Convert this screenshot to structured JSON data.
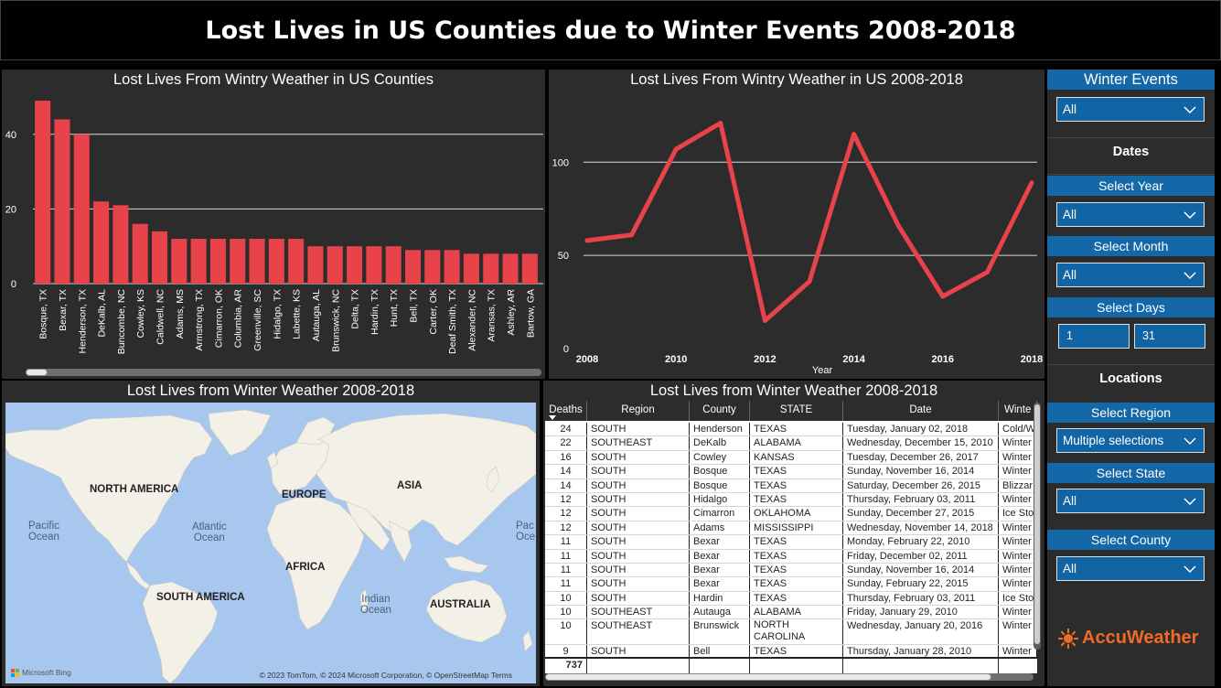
{
  "header": {
    "title": "Lost Lives in US Counties due to Winter Events 2008-2018"
  },
  "bar_chart": {
    "title": "Lost Lives From Wintry Weather in US Counties"
  },
  "line_chart": {
    "title": "Lost Lives  From Wintry Weather in US 2008-2018"
  },
  "map": {
    "title": "Lost Lives from Winter Weather 2008-2018",
    "labels": {
      "north_america": "NORTH AMERICA",
      "europe": "EUROPE",
      "asia": "ASIA",
      "africa": "AFRICA",
      "south_america": "SOUTH AMERICA",
      "australia": "AUSTRALIA",
      "pacific": "Pacific\nOcean",
      "atlantic": "Atlantic\nOcean",
      "indian": "Indian\nOcean",
      "pacific_right": "Pac\nOce"
    },
    "attribution": "© 2023 TomTom, © 2024 Microsoft Corporation, © OpenStreetMap  Terms",
    "bing": "Microsoft Bing"
  },
  "table": {
    "title": "Lost Lives from Winter Weather 2008-2018",
    "columns": [
      "Deaths",
      "Region",
      "County",
      "STATE",
      "Date",
      "Winte"
    ],
    "rows": [
      [
        "24",
        "SOUTH",
        "Henderson",
        "TEXAS",
        "Tuesday, January 02, 2018",
        "Cold/W"
      ],
      [
        "22",
        "SOUTHEAST",
        "DeKalb",
        "ALABAMA",
        "Wednesday, December 15, 2010",
        "Winter"
      ],
      [
        "16",
        "SOUTH",
        "Cowley",
        "KANSAS",
        "Tuesday, December 26, 2017",
        "Winter"
      ],
      [
        "14",
        "SOUTH",
        "Bosque",
        "TEXAS",
        "Sunday, November 16, 2014",
        "Winter"
      ],
      [
        "14",
        "SOUTH",
        "Bosque",
        "TEXAS",
        "Saturday, December 26, 2015",
        "Blizzar"
      ],
      [
        "12",
        "SOUTH",
        "Hidalgo",
        "TEXAS",
        "Thursday, February 03, 2011",
        "Winter"
      ],
      [
        "12",
        "SOUTH",
        "Cimarron",
        "OKLAHOMA",
        "Sunday, December 27, 2015",
        "Ice Sto"
      ],
      [
        "12",
        "SOUTH",
        "Adams",
        "MISSISSIPPI",
        "Wednesday, November 14, 2018",
        "Winter"
      ],
      [
        "11",
        "SOUTH",
        "Bexar",
        "TEXAS",
        "Monday, February 22, 2010",
        "Winter"
      ],
      [
        "11",
        "SOUTH",
        "Bexar",
        "TEXAS",
        "Friday, December 02, 2011",
        "Winter"
      ],
      [
        "11",
        "SOUTH",
        "Bexar",
        "TEXAS",
        "Sunday, November 16, 2014",
        "Winter"
      ],
      [
        "11",
        "SOUTH",
        "Bexar",
        "TEXAS",
        "Sunday, February 22, 2015",
        "Winter"
      ],
      [
        "10",
        "SOUTH",
        "Hardin",
        "TEXAS",
        "Thursday, February 03, 2011",
        "Ice Sto"
      ],
      [
        "10",
        "SOUTHEAST",
        "Autauga",
        "ALABAMA",
        "Friday, January 29, 2010",
        "Winter"
      ],
      [
        "10",
        "SOUTHEAST",
        "Brunswick",
        "NORTH CAROLINA",
        "Wednesday, January 20, 2016",
        "Winter"
      ],
      [
        "9",
        "SOUTH",
        "Bell",
        "TEXAS",
        "Thursday, January 28, 2010",
        "Winter"
      ]
    ],
    "total": "737"
  },
  "slicers": {
    "winter_events": {
      "label": "Winter Events",
      "value": "All"
    },
    "dates_header": "Dates",
    "year": {
      "label": "Select Year",
      "value": "All"
    },
    "month": {
      "label": "Select Month",
      "value": "All"
    },
    "days": {
      "label": "Select Days",
      "from": "1",
      "to": "31"
    },
    "locations_header": "Locations",
    "region": {
      "label": "Select Region",
      "value": "Multiple selections"
    },
    "state": {
      "label": "Select State",
      "value": "All"
    },
    "county": {
      "label": "Select County",
      "value": "All"
    }
  },
  "brand": {
    "name": "AccuWeather",
    "color": "#f26a23"
  },
  "colors": {
    "bar": "#e8424a",
    "line": "#e8424a",
    "slicer": "#1468a8",
    "panel": "#2c2c2c"
  },
  "chart_data": [
    {
      "type": "bar",
      "title": "Lost Lives From Wintry Weather in US Counties",
      "categories": [
        "Bosque, TX",
        "Bexar, TX",
        "Henderson, TX",
        "DeKalb, AL",
        "Buncombe, NC",
        "Cowley, KS",
        "Caldwell, NC",
        "Adams, MS",
        "Armstrong, TX",
        "Cimarron, OK",
        "Columbia, AR",
        "Greenville, SC",
        "Hidalgo, TX",
        "Labette, KS",
        "Autauga, AL",
        "Brunswick, NC",
        "Delta, TX",
        "Hardin, TX",
        "Hunt, TX",
        "Bell, TX",
        "Carter, OK",
        "Deaf Smith, TX",
        "Alexander, NC",
        "Aransas, TX",
        "Ashley, AR",
        "Bartow, GA"
      ],
      "values": [
        49,
        44,
        40,
        22,
        21,
        16,
        14,
        12,
        12,
        12,
        12,
        12,
        12,
        12,
        10,
        10,
        10,
        10,
        10,
        9,
        9,
        9,
        8,
        8,
        8,
        8
      ],
      "ylim": [
        0,
        50
      ],
      "yticks": [
        "0",
        "20",
        "40"
      ],
      "grid": true
    },
    {
      "type": "line",
      "title": "Lost Lives  From Wintry Weather in US 2008-2018",
      "x": [
        2008,
        2009,
        2010,
        2011,
        2012,
        2013,
        2014,
        2015,
        2016,
        2017,
        2018
      ],
      "values": [
        58,
        61,
        107,
        121,
        15,
        36,
        115,
        66,
        28,
        41,
        89
      ],
      "xlabel": "Year",
      "xticks": [
        "2008",
        "2010",
        "2012",
        "2014",
        "2016",
        "2018"
      ],
      "yticks": [
        "0",
        "50",
        "100"
      ],
      "ylim": [
        0,
        135
      ],
      "grid": true
    }
  ]
}
